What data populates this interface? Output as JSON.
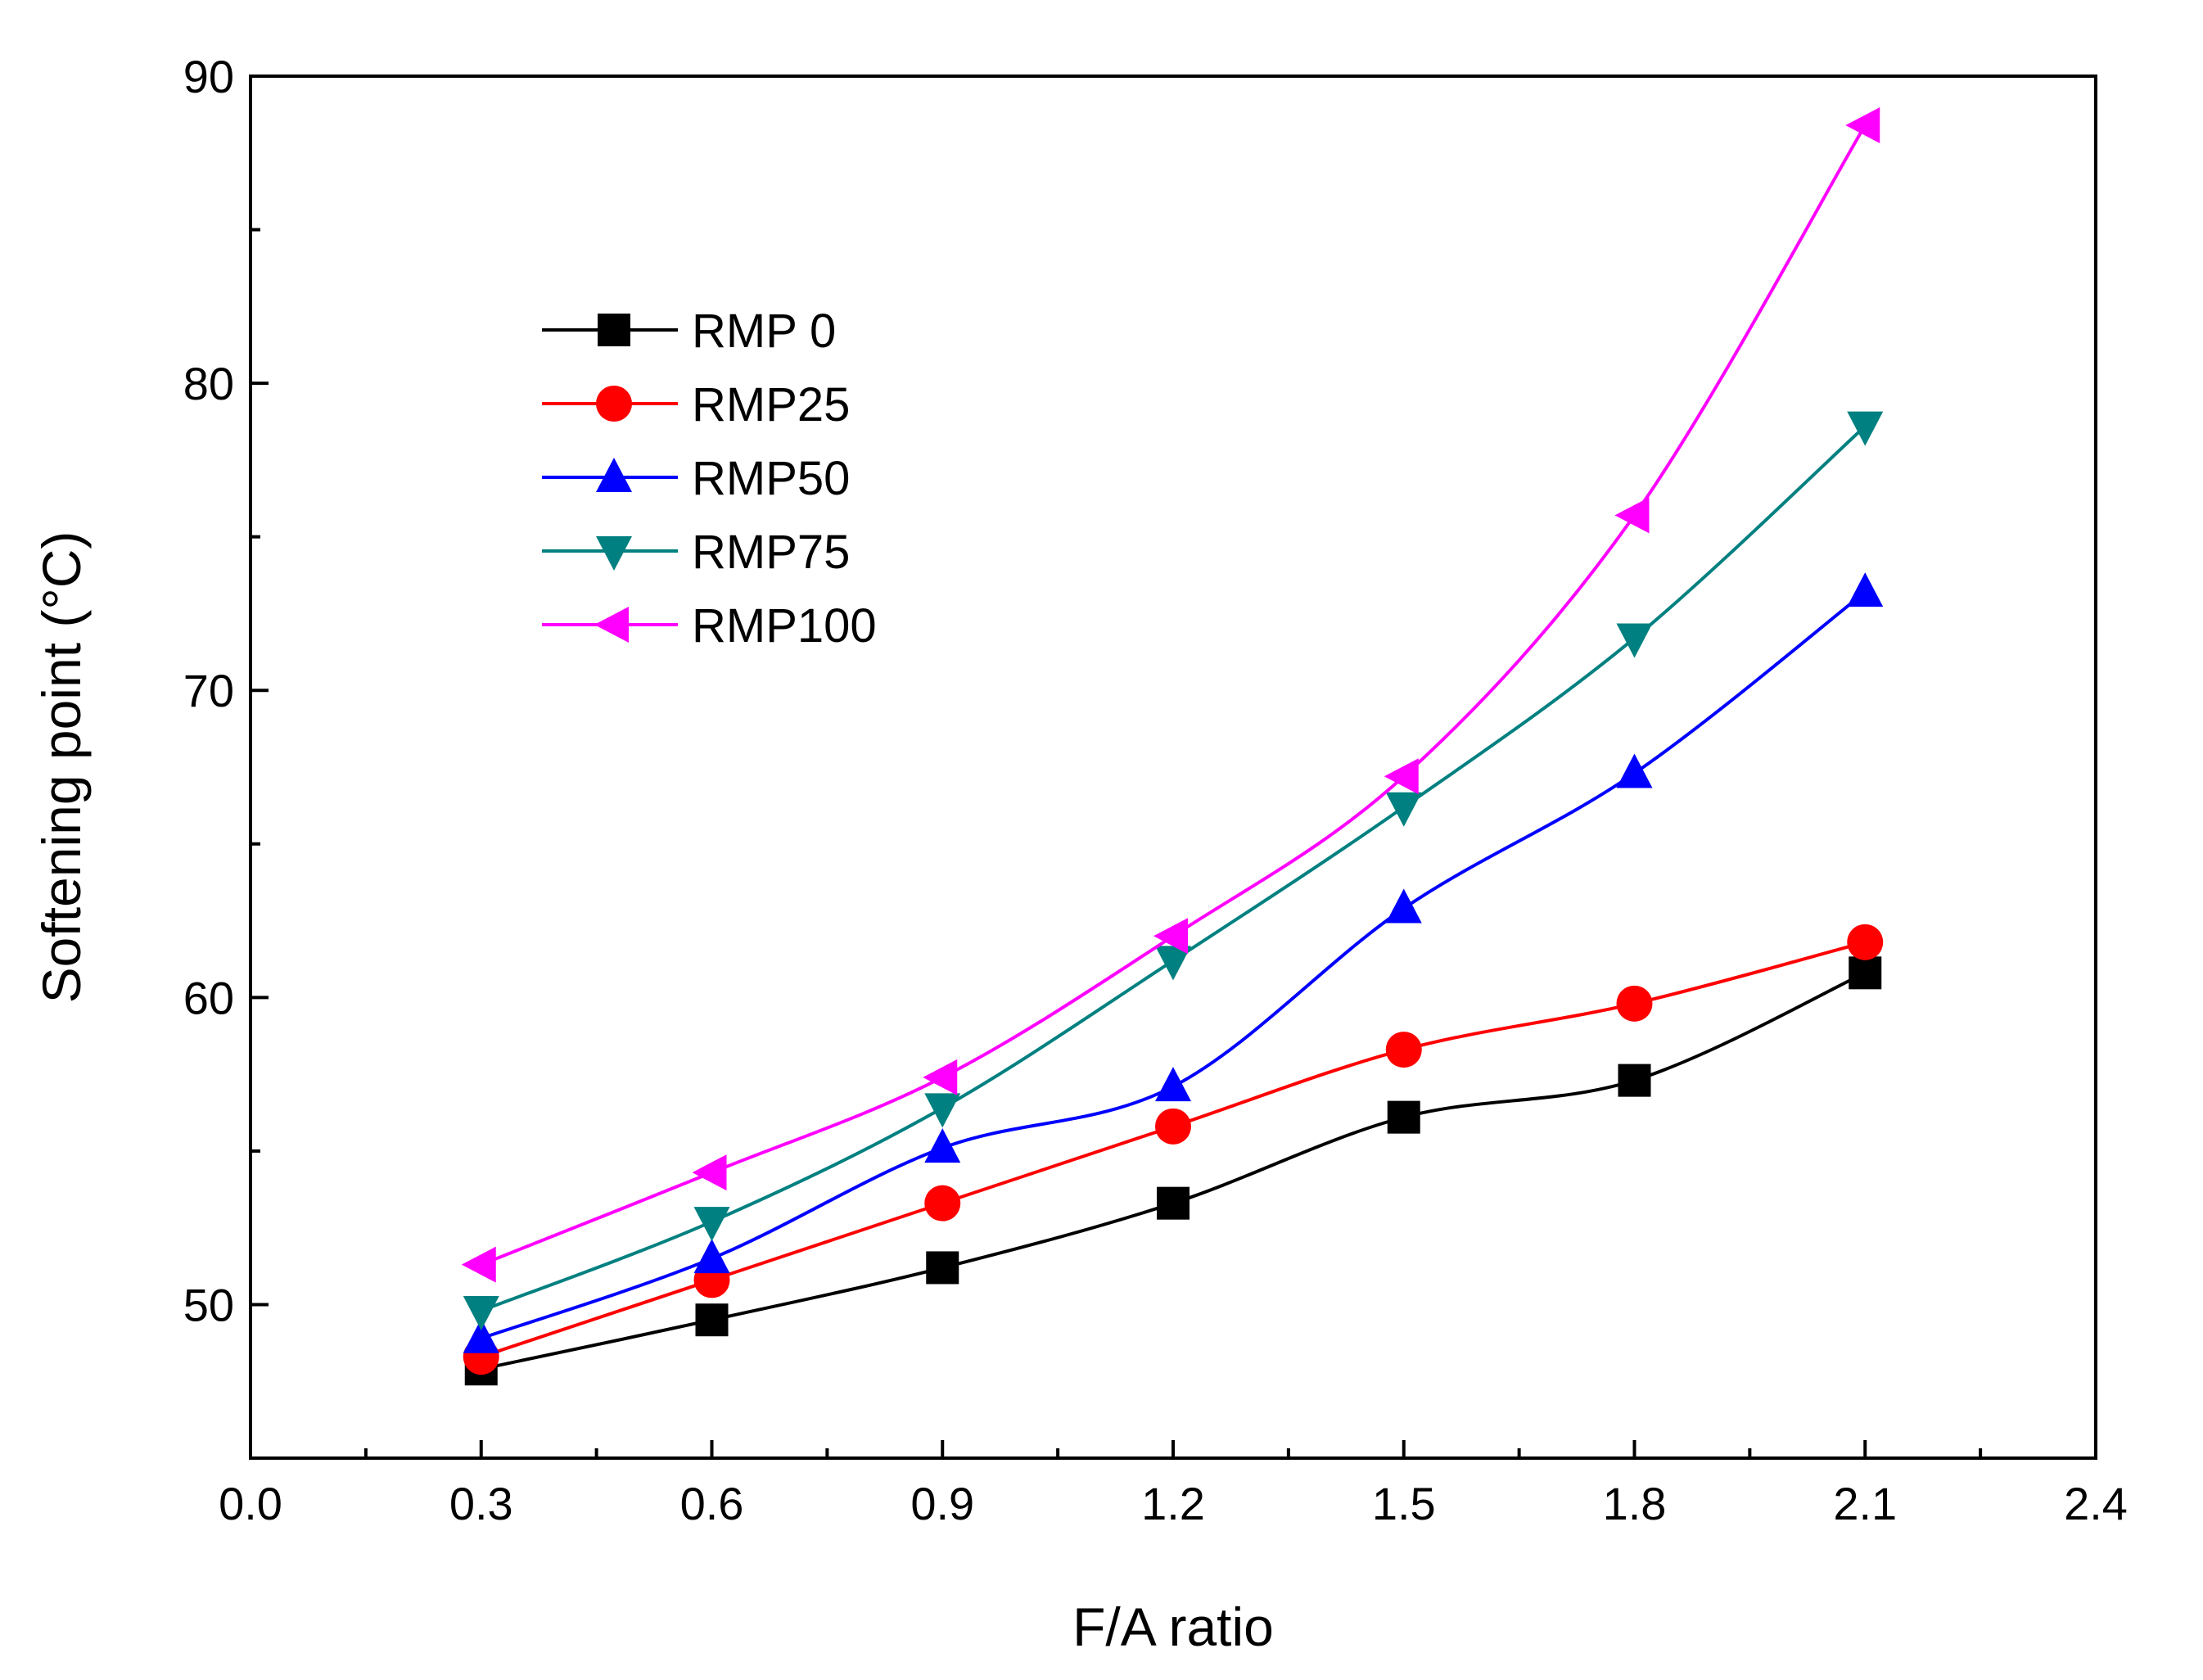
{
  "chart_data": {
    "type": "line",
    "title": "",
    "xlabel": "F/A ratio",
    "ylabel": "Softening point (°C)",
    "xlim": [
      0.0,
      2.4
    ],
    "ylim": [
      45,
      90
    ],
    "x_ticks": [
      "0.0",
      "0.3",
      "0.6",
      "0.9",
      "1.2",
      "1.5",
      "1.8",
      "2.1",
      "2.4"
    ],
    "y_ticks": [
      "50",
      "60",
      "70",
      "80",
      "90"
    ],
    "x": [
      0.3,
      0.6,
      0.9,
      1.2,
      1.5,
      1.8,
      2.1
    ],
    "legend_position": "upper-left",
    "grid": false,
    "series": [
      {
        "name": "RMP 0",
        "color": "#000000",
        "marker": "square",
        "values": [
          47.9,
          49.5,
          51.2,
          53.3,
          56.1,
          57.3,
          60.8
        ]
      },
      {
        "name": "RMP25",
        "color": "#ff0000",
        "marker": "circle",
        "values": [
          48.3,
          50.8,
          53.3,
          55.8,
          58.3,
          59.8,
          61.8
        ]
      },
      {
        "name": "RMP50",
        "color": "#0000ff",
        "marker": "triangle-up",
        "values": [
          48.9,
          51.5,
          55.1,
          57.1,
          62.9,
          67.3,
          73.2
        ]
      },
      {
        "name": "RMP75",
        "color": "#008080",
        "marker": "triangle-down",
        "values": [
          49.8,
          52.7,
          56.4,
          61.2,
          66.2,
          71.7,
          78.6
        ]
      },
      {
        "name": "RMP100",
        "color": "#ff00ff",
        "marker": "triangle-left",
        "values": [
          51.3,
          54.3,
          57.4,
          62.0,
          67.2,
          75.7,
          88.4
        ]
      }
    ]
  }
}
